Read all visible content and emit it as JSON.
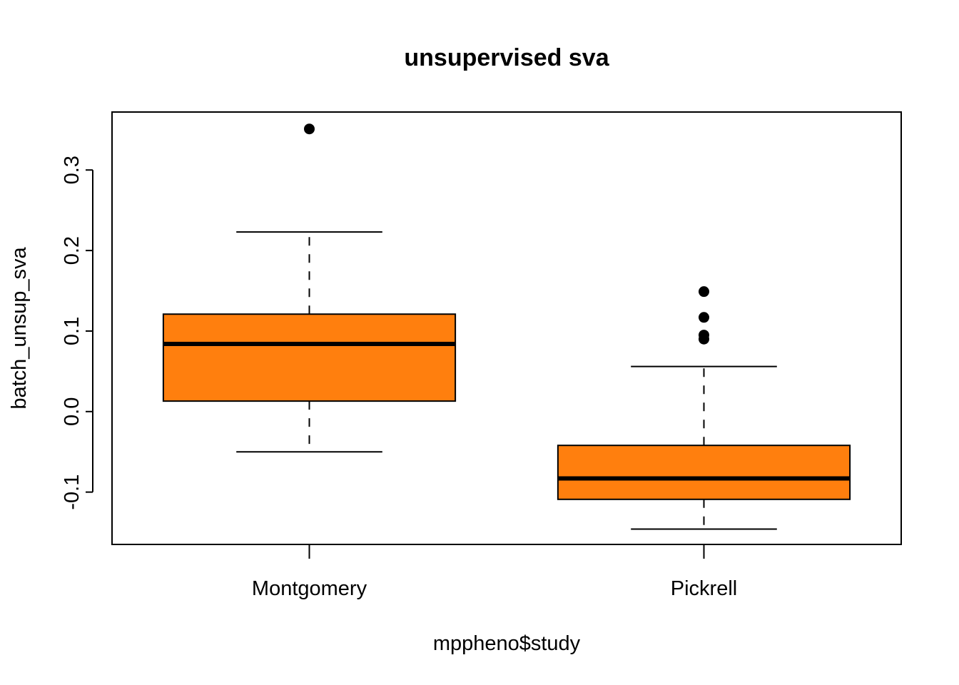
{
  "chart_data": {
    "type": "boxplot",
    "title": "unsupervised sva",
    "xlabel": "mppheno$study",
    "ylabel": "batch_unsup_sva",
    "ylim": [
      -0.165,
      0.372
    ],
    "yticks": [
      -0.1,
      0.0,
      0.1,
      0.2,
      0.3
    ],
    "ytick_labels": [
      "-0.1",
      "0.0",
      "0.1",
      "0.2",
      "0.3"
    ],
    "categories": [
      "Montgomery",
      "Pickrell"
    ],
    "boxes": [
      {
        "name": "Montgomery",
        "whisker_low": -0.05,
        "q1": 0.013,
        "median": 0.084,
        "q3": 0.121,
        "whisker_high": 0.223,
        "outliers": [
          0.351
        ]
      },
      {
        "name": "Pickrell",
        "whisker_low": -0.146,
        "q1": -0.109,
        "median": -0.083,
        "q3": -0.042,
        "whisker_high": 0.056,
        "outliers": [
          0.149,
          0.117,
          0.095,
          0.09
        ]
      }
    ],
    "box_color": "#FF7F0E",
    "grid": false,
    "legend": "none"
  }
}
